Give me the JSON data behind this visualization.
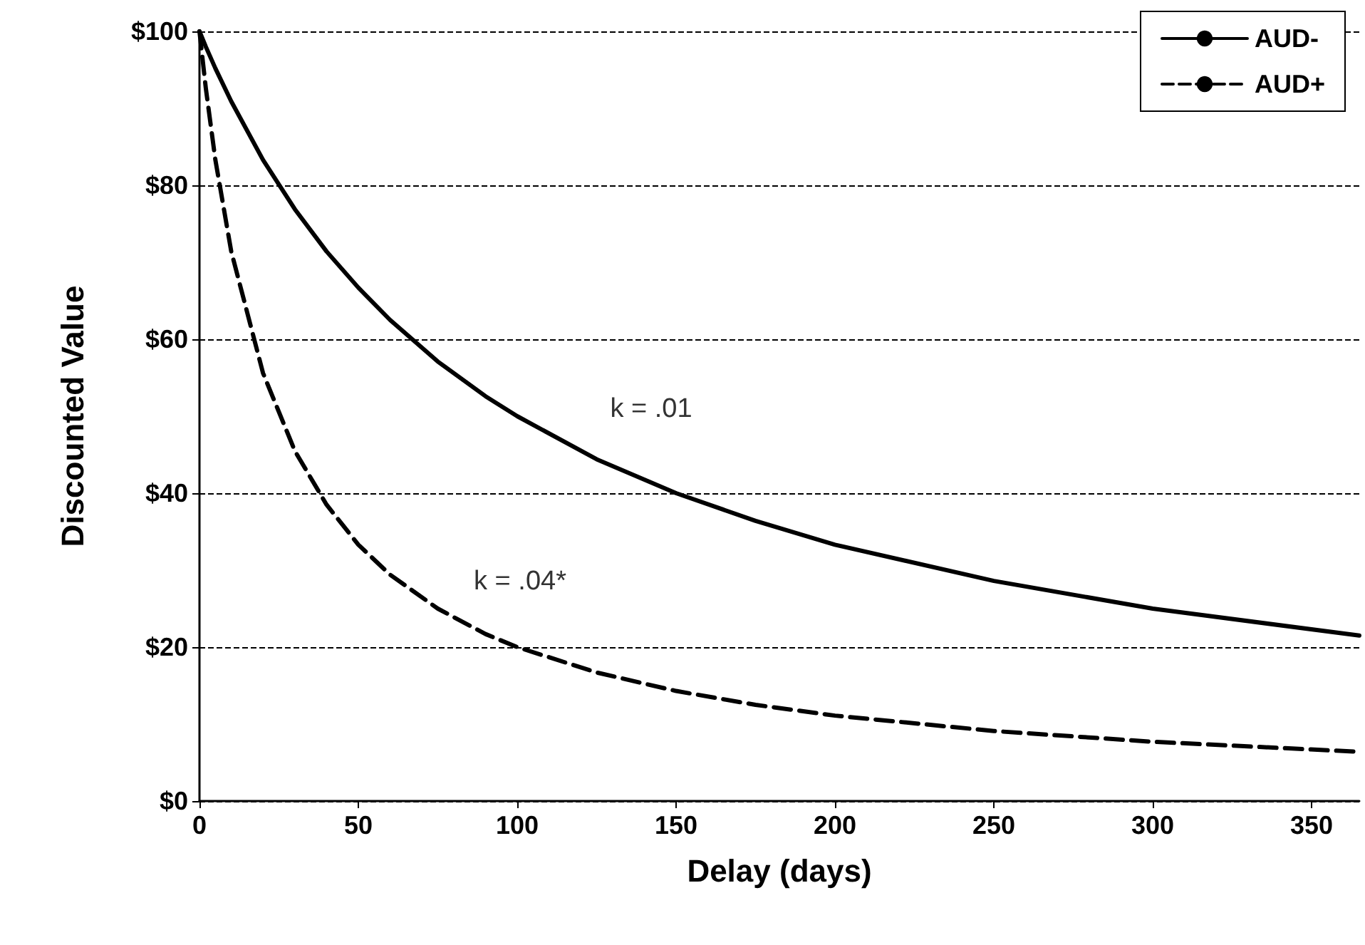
{
  "chart_data": {
    "type": "line",
    "xlabel": "Delay (days)",
    "ylabel": "Discounted Value",
    "x": [
      0,
      2,
      5,
      10,
      20,
      30,
      40,
      50,
      60,
      75,
      90,
      100,
      125,
      150,
      175,
      200,
      250,
      300,
      365
    ],
    "series": [
      {
        "name": "AUD-",
        "color": "#000000",
        "line_style": "solid",
        "values": [
          100,
          98,
          95.2,
          90.9,
          83.3,
          76.9,
          71.4,
          66.7,
          62.5,
          57.1,
          52.6,
          50,
          44.4,
          40,
          36.4,
          33.3,
          28.6,
          25,
          21.5
        ]
      },
      {
        "name": "AUD+",
        "color": "#000000",
        "line_style": "dashed",
        "values": [
          100,
          92.6,
          83.3,
          71.4,
          55.6,
          45.5,
          38.5,
          33.3,
          29.4,
          25,
          21.7,
          20,
          16.7,
          14.3,
          12.5,
          11.1,
          9.1,
          7.7,
          6.4
        ]
      }
    ],
    "xlim": [
      0,
      365
    ],
    "xticks": [
      0,
      50,
      100,
      150,
      200,
      250,
      300,
      350
    ],
    "ylim": [
      0,
      100
    ],
    "yticks": [
      {
        "value": 0,
        "label": "$0"
      },
      {
        "value": 20,
        "label": "$20"
      },
      {
        "value": 40,
        "label": "$40"
      },
      {
        "value": 60,
        "label": "$60"
      },
      {
        "value": 80,
        "label": "$80"
      },
      {
        "value": 100,
        "label": "$100"
      }
    ],
    "annotations": [
      "k = .01",
      "k = .04*"
    ],
    "grid": "y",
    "legend": "top right",
    "marker": "none"
  }
}
